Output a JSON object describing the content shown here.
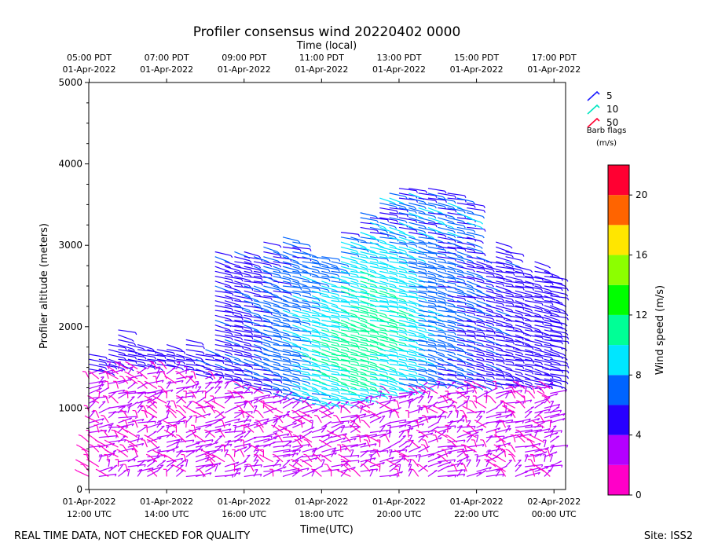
{
  "chart_data": {
    "type": "wind_barb_profile",
    "title": "Profiler consensus wind 20220402 0000",
    "top_axis_title": "Time (local)",
    "xlabel": "Time(UTC)",
    "ylabel": "Profiler altitude (meters)",
    "x_range_hours_utc": [
      11.99,
      24.3
    ],
    "ylim": [
      0,
      5000
    ],
    "y_ticks": [
      0,
      1000,
      2000,
      3000,
      4000,
      5000
    ],
    "bottom_ticks": [
      {
        "hour": 12,
        "line1": "01-Apr-2022",
        "line2": "12:00 UTC"
      },
      {
        "hour": 14,
        "line1": "01-Apr-2022",
        "line2": "14:00 UTC"
      },
      {
        "hour": 16,
        "line1": "01-Apr-2022",
        "line2": "16:00 UTC"
      },
      {
        "hour": 18,
        "line1": "01-Apr-2022",
        "line2": "18:00 UTC"
      },
      {
        "hour": 20,
        "line1": "01-Apr-2022",
        "line2": "20:00 UTC"
      },
      {
        "hour": 22,
        "line1": "01-Apr-2022",
        "line2": "22:00 UTC"
      },
      {
        "hour": 24,
        "line1": "02-Apr-2022",
        "line2": "00:00 UTC"
      }
    ],
    "top_ticks": [
      {
        "hour": 12,
        "line1": "05:00 PDT",
        "line2": "01-Apr-2022"
      },
      {
        "hour": 14,
        "line1": "07:00 PDT",
        "line2": "01-Apr-2022"
      },
      {
        "hour": 16,
        "line1": "09:00 PDT",
        "line2": "01-Apr-2022"
      },
      {
        "hour": 18,
        "line1": "11:00 PDT",
        "line2": "01-Apr-2022"
      },
      {
        "hour": 20,
        "line1": "13:00 PDT",
        "line2": "01-Apr-2022"
      },
      {
        "hour": 22,
        "line1": "15:00 PDT",
        "line2": "01-Apr-2022"
      },
      {
        "hour": 24,
        "line1": "17:00 PDT",
        "line2": "01-Apr-2022"
      }
    ],
    "barb_legend": {
      "items": [
        {
          "label": "5",
          "speed": 5,
          "color": "#1a1aff"
        },
        {
          "label": "10",
          "speed": 10,
          "color": "#00e5c0"
        },
        {
          "label": "50",
          "speed": 50,
          "color": "#ff0030"
        }
      ],
      "caption_line1": "Barb flags",
      "caption_line2": "(m/s)"
    },
    "colorbar": {
      "label": "Wind speed (m/s)",
      "min": 0,
      "max": 22,
      "ticks": [
        0,
        4,
        8,
        12,
        16,
        20
      ],
      "bins": [
        {
          "from": 0,
          "to": 2,
          "color": "#ff00c8"
        },
        {
          "from": 2,
          "to": 4,
          "color": "#b400ff"
        },
        {
          "from": 4,
          "to": 6,
          "color": "#2800ff"
        },
        {
          "from": 6,
          "to": 8,
          "color": "#0064ff"
        },
        {
          "from": 8,
          "to": 10,
          "color": "#00e6ff"
        },
        {
          "from": 10,
          "to": 12,
          "color": "#00ff96"
        },
        {
          "from": 12,
          "to": 14,
          "color": "#00ff00"
        },
        {
          "from": 14,
          "to": 16,
          "color": "#8cff00"
        },
        {
          "from": 16,
          "to": 18,
          "color": "#ffe600"
        },
        {
          "from": 18,
          "to": 20,
          "color": "#ff6400"
        },
        {
          "from": 20,
          "to": 22,
          "color": "#ff0032"
        }
      ]
    },
    "profiles": [
      {
        "hour": 12.0,
        "low_top": 1450,
        "top": 1680
      },
      {
        "hour": 12.25,
        "low_top": 1450,
        "top": 1650
      },
      {
        "hour": 12.5,
        "low_top": 1500,
        "top": 1800
      },
      {
        "hour": 12.75,
        "low_top": 1500,
        "top": 1980
      },
      {
        "hour": 13.0,
        "low_top": 1500,
        "top": 1830
      },
      {
        "hour": 13.25,
        "low_top": 1500,
        "top": 1780
      },
      {
        "hour": 13.5,
        "low_top": 1500,
        "top": 1750
      },
      {
        "hour": 13.75,
        "low_top": 1500,
        "top": 1760
      },
      {
        "hour": 14.0,
        "low_top": 1500,
        "top": 1820
      },
      {
        "hour": 14.25,
        "low_top": 1500,
        "top": 1700
      },
      {
        "hour": 14.5,
        "low_top": 1450,
        "top": 1850
      },
      {
        "hour": 14.75,
        "low_top": 1400,
        "top": 1700
      },
      {
        "hour": 15.0,
        "low_top": 1400,
        "top": 1750
      },
      {
        "hour": 15.25,
        "low_top": 1400,
        "top": 2950
      },
      {
        "hour": 15.5,
        "low_top": 1350,
        "top": 2850
      },
      {
        "hour": 15.75,
        "low_top": 1300,
        "top": 2950
      },
      {
        "hour": 16.0,
        "low_top": 1250,
        "top": 2950
      },
      {
        "hour": 16.25,
        "low_top": 1200,
        "top": 2900
      },
      {
        "hour": 16.5,
        "low_top": 1200,
        "top": 3050
      },
      {
        "hour": 16.75,
        "low_top": 1150,
        "top": 2950
      },
      {
        "hour": 17.0,
        "low_top": 1150,
        "top": 3100
      },
      {
        "hour": 17.25,
        "low_top": 1100,
        "top": 3050
      },
      {
        "hour": 17.5,
        "low_top": 1100,
        "top": 2950
      },
      {
        "hour": 17.75,
        "low_top": 1050,
        "top": 2900
      },
      {
        "hour": 18.0,
        "low_top": 1050,
        "top": 2900
      },
      {
        "hour": 18.25,
        "low_top": 1050,
        "top": 2850
      },
      {
        "hour": 18.5,
        "low_top": 1050,
        "top": 3200
      },
      {
        "hour": 18.75,
        "low_top": 1100,
        "top": 3150
      },
      {
        "hour": 19.0,
        "low_top": 1100,
        "top": 3400
      },
      {
        "hour": 19.25,
        "low_top": 1150,
        "top": 3350
      },
      {
        "hour": 19.5,
        "low_top": 1150,
        "top": 3600
      },
      {
        "hour": 19.75,
        "low_top": 1200,
        "top": 3650
      },
      {
        "hour": 20.0,
        "low_top": 1200,
        "top": 3700
      },
      {
        "hour": 20.25,
        "low_top": 1200,
        "top": 3700
      },
      {
        "hour": 20.5,
        "low_top": 1250,
        "top": 3650
      },
      {
        "hour": 20.75,
        "low_top": 1250,
        "top": 3700
      },
      {
        "hour": 21.0,
        "low_top": 1250,
        "top": 3650
      },
      {
        "hour": 21.25,
        "low_top": 1250,
        "top": 3650
      },
      {
        "hour": 21.5,
        "low_top": 1250,
        "top": 3600
      },
      {
        "hour": 21.75,
        "low_top": 1250,
        "top": 3550
      },
      {
        "hour": 22.0,
        "low_top": 1250,
        "top": 2900
      },
      {
        "hour": 22.25,
        "low_top": 1250,
        "top": 2850
      },
      {
        "hour": 22.5,
        "low_top": 1250,
        "top": 3050
      },
      {
        "hour": 22.75,
        "low_top": 1250,
        "top": 2950
      },
      {
        "hour": 23.0,
        "low_top": 1250,
        "top": 2750
      },
      {
        "hour": 23.25,
        "low_top": 1250,
        "top": 2650
      },
      {
        "hour": 23.5,
        "low_top": 1250,
        "top": 2800
      },
      {
        "hour": 23.75,
        "low_top": 1250,
        "top": 2700
      },
      {
        "hour": 23.9,
        "low_top": 1250,
        "top": 2650
      }
    ]
  },
  "footer": {
    "disclaimer": "REAL TIME DATA, NOT CHECKED FOR QUALITY",
    "site": "Site: ISS2"
  }
}
